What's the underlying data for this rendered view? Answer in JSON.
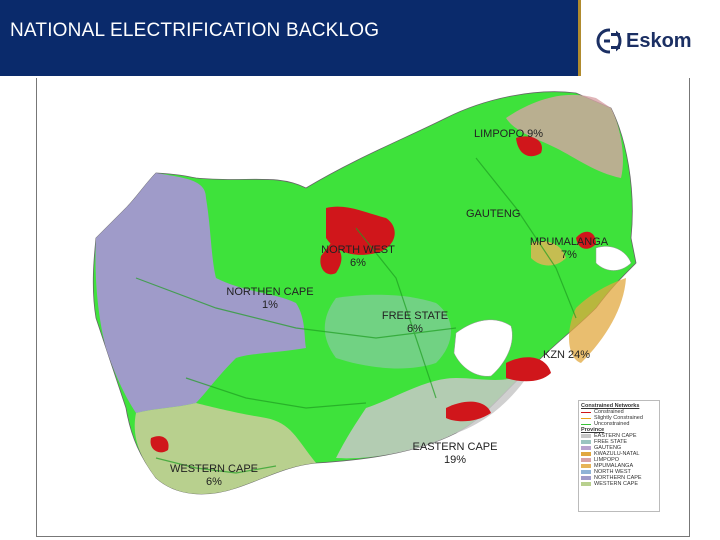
{
  "header": {
    "title": "NATIONAL ELECTRIFICATION BACKLOG",
    "logo_text": "Eskom",
    "logo_icon": "eskom-logo-icon",
    "bar_color": "#0a2a6b",
    "accent_color": "#b08b2e"
  },
  "map": {
    "regions": [
      {
        "label": "LIMPOPO 9%"
      },
      {
        "label": "GAUTENG"
      },
      {
        "label": "MPUMALANGA",
        "value": "7%"
      },
      {
        "label": "NORTH WEST",
        "value": "6%"
      },
      {
        "label": "NORTHEN CAPE",
        "value": "1%"
      },
      {
        "label": "FREE STATE",
        "value": "6%"
      },
      {
        "label": "KZN 24%"
      },
      {
        "label": "EASTERN CAPE",
        "value": "19%"
      },
      {
        "label": "WESTERN CAPE",
        "value": "6%"
      }
    ],
    "legend": {
      "networks_title": "Constrained Networks",
      "networks": [
        {
          "label": "Constrained",
          "color": "#d0161b"
        },
        {
          "label": "Slightly Constrained",
          "color": "#e8a21c"
        },
        {
          "label": "Unconstrained",
          "color": "#39c23a"
        }
      ],
      "province_title": "Province",
      "provinces": [
        {
          "label": "EASTERN CAPE",
          "color": "#c8c8c8"
        },
        {
          "label": "FREE STATE",
          "color": "#9bc4c0"
        },
        {
          "label": "GAUTENG",
          "color": "#b9a2cf"
        },
        {
          "label": "KWAZULU-NATAL",
          "color": "#e1a83f"
        },
        {
          "label": "LIMPOPO",
          "color": "#d8a2a6"
        },
        {
          "label": "MPUMALANGA",
          "color": "#e7b457"
        },
        {
          "label": "NORTH WEST",
          "color": "#8fb3d6"
        },
        {
          "label": "NORTHERN CAPE",
          "color": "#9f9bc9"
        },
        {
          "label": "WESTERN CAPE",
          "color": "#b8d08e"
        }
      ]
    }
  }
}
